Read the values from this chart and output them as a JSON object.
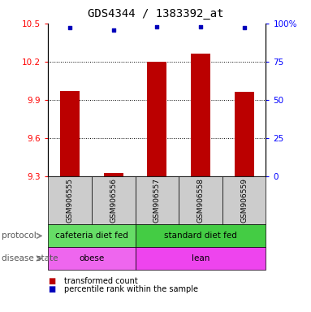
{
  "title": "GDS4344 / 1383392_at",
  "samples": [
    "GSM906555",
    "GSM906556",
    "GSM906557",
    "GSM906558",
    "GSM906559"
  ],
  "bar_values": [
    9.97,
    9.325,
    10.2,
    10.26,
    9.96
  ],
  "bar_base": 9.3,
  "percentile_values": [
    97.5,
    95.5,
    98.0,
    98.0,
    97.0
  ],
  "ylim_left": [
    9.3,
    10.5
  ],
  "ylim_right": [
    0,
    100
  ],
  "yticks_left": [
    9.3,
    9.6,
    9.9,
    10.2,
    10.5
  ],
  "yticks_right": [
    0,
    25,
    50,
    75,
    100
  ],
  "ytick_labels_right": [
    "0",
    "25",
    "50",
    "75",
    "100%"
  ],
  "dotted_lines": [
    9.6,
    9.9,
    10.2
  ],
  "bar_color": "#bb0000",
  "dot_color": "#0000bb",
  "protocol_groups": [
    {
      "label": "cafeteria diet fed",
      "start": 0,
      "end": 1,
      "color": "#66dd66"
    },
    {
      "label": "standard diet fed",
      "start": 2,
      "end": 4,
      "color": "#44cc44"
    }
  ],
  "disease_groups": [
    {
      "label": "obese",
      "start": 0,
      "end": 1,
      "color": "#ee66ee"
    },
    {
      "label": "lean",
      "start": 2,
      "end": 4,
      "color": "#ee44ee"
    }
  ],
  "protocol_label": "protocol",
  "disease_label": "disease state",
  "legend_red": "transformed count",
  "legend_blue": "percentile rank within the sample",
  "title_fontsize": 10,
  "tick_fontsize": 7.5,
  "sample_fontsize": 6.5,
  "row_fontsize": 7.5,
  "legend_fontsize": 7
}
